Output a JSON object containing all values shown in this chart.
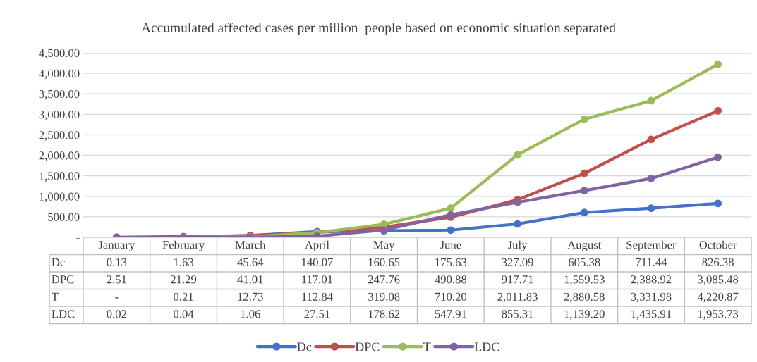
{
  "chart_data": {
    "type": "line",
    "title": "Accumulated affected cases per million  people based on economic situation separated",
    "categories": [
      "January",
      "February",
      "March",
      "April",
      "May",
      "June",
      "July",
      "August",
      "September",
      "October"
    ],
    "series": [
      {
        "name": "Dc",
        "color": "#4472c4",
        "values": [
          0.13,
          1.63,
          45.64,
          140.07,
          160.65,
          175.63,
          327.09,
          605.38,
          711.44,
          826.38
        ],
        "value_labels": [
          "0.13",
          "1.63",
          "45.64",
          "140.07",
          "160.65",
          "175.63",
          "327.09",
          "605.38",
          "711.44",
          "826.38"
        ]
      },
      {
        "name": "DPC",
        "color": "#c0504d",
        "values": [
          2.51,
          21.29,
          41.01,
          117.01,
          247.76,
          490.88,
          917.71,
          1559.53,
          2388.92,
          3085.48
        ],
        "value_labels": [
          "2.51",
          "21.29",
          "41.01",
          "117.01",
          "247.76",
          "490.88",
          "917.71",
          "1,559.53",
          "2,388.92",
          "3,085.48"
        ]
      },
      {
        "name": "T",
        "color": "#9bbb59",
        "values": [
          0,
          0.21,
          12.73,
          112.84,
          319.08,
          710.2,
          2011.83,
          2880.58,
          3331.98,
          4220.87
        ],
        "value_labels": [
          "-",
          "0.21",
          "12.73",
          "112.84",
          "319.08",
          "710.20",
          "2,011.83",
          "2,880.58",
          "3,331.98",
          "4,220.87"
        ]
      },
      {
        "name": "LDC",
        "color": "#8064a2",
        "values": [
          0.02,
          0.04,
          1.06,
          27.51,
          178.62,
          547.91,
          855.31,
          1139.2,
          1435.91,
          1953.73
        ],
        "value_labels": [
          "0.02",
          "0.04",
          "1.06",
          "27.51",
          "178.62",
          "547.91",
          "855.31",
          "1,139.20",
          "1,435.91",
          "1,953.73"
        ]
      }
    ],
    "ylim": [
      0,
      4500
    ],
    "yticks": [
      {
        "value": 0,
        "label": "-"
      },
      {
        "value": 500,
        "label": "500.00"
      },
      {
        "value": 1000,
        "label": "1,000.00"
      },
      {
        "value": 1500,
        "label": "1,500.00"
      },
      {
        "value": 2000,
        "label": "2,000.00"
      },
      {
        "value": 2500,
        "label": "2,500.00"
      },
      {
        "value": 3000,
        "label": "3,000.00"
      },
      {
        "value": 3500,
        "label": "3,500.00"
      },
      {
        "value": 4000,
        "label": "4,000.00"
      },
      {
        "value": 4500,
        "label": "4,500.00"
      }
    ],
    "grid": "y",
    "legend": "bottom",
    "marker": "circle",
    "line_style": "solid"
  }
}
